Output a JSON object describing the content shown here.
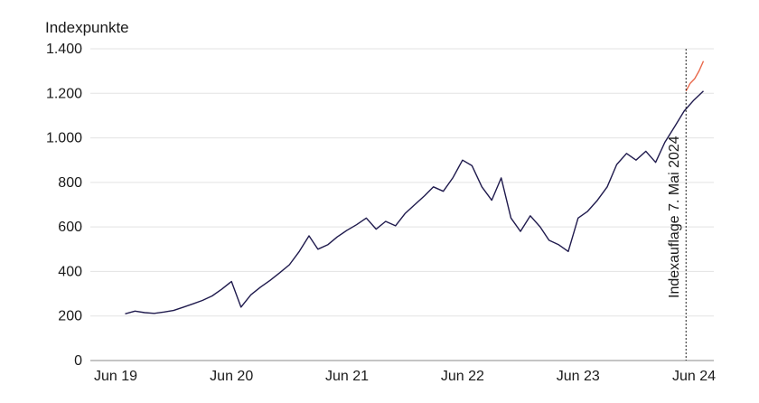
{
  "chart_data": {
    "type": "line",
    "ylabel": "Indexpunkte",
    "ylim": [
      0,
      1400
    ],
    "y_ticks": [
      0,
      200,
      400,
      600,
      800,
      1000,
      1200,
      1400
    ],
    "y_tick_labels": [
      "0",
      "200",
      "400",
      "600",
      "800",
      "1.000",
      "1.200",
      "1.400"
    ],
    "x_tick_labels": [
      "Jun 19",
      "Jun 20",
      "Jun 21",
      "Jun 22",
      "Jun 23",
      "Jun 24"
    ],
    "x_ticks": [
      "2019-06",
      "2020-06",
      "2021-06",
      "2022-06",
      "2023-06",
      "2024-06"
    ],
    "xlim": [
      "2019-06",
      "2024-07"
    ],
    "grid": true,
    "annotation": {
      "label": "Indexauflage  7. Mai 2024",
      "date": "2024-05-07",
      "style": "dashed vertical line, rotated text"
    },
    "series": [
      {
        "color": "#1f1a4d",
        "points": [
          [
            "2019-07",
            210
          ],
          [
            "2019-08",
            222
          ],
          [
            "2019-09",
            215
          ],
          [
            "2019-10",
            212
          ],
          [
            "2019-11",
            218
          ],
          [
            "2019-12",
            225
          ],
          [
            "2020-01",
            240
          ],
          [
            "2020-02",
            255
          ],
          [
            "2020-03",
            270
          ],
          [
            "2020-04",
            290
          ],
          [
            "2020-05",
            320
          ],
          [
            "2020-06",
            355
          ],
          [
            "2020-07",
            240
          ],
          [
            "2020-08",
            295
          ],
          [
            "2020-09",
            330
          ],
          [
            "2020-10",
            360
          ],
          [
            "2020-11",
            395
          ],
          [
            "2020-12",
            430
          ],
          [
            "2021-01",
            490
          ],
          [
            "2021-02",
            560
          ],
          [
            "2021-03",
            500
          ],
          [
            "2021-04",
            520
          ],
          [
            "2021-05",
            555
          ],
          [
            "2021-06",
            585
          ],
          [
            "2021-07",
            610
          ],
          [
            "2021-08",
            640
          ],
          [
            "2021-09",
            590
          ],
          [
            "2021-10",
            625
          ],
          [
            "2021-11",
            605
          ],
          [
            "2021-12",
            660
          ],
          [
            "2022-01",
            700
          ],
          [
            "2022-02",
            740
          ],
          [
            "2022-03",
            780
          ],
          [
            "2022-04",
            760
          ],
          [
            "2022-05",
            820
          ],
          [
            "2022-06",
            900
          ],
          [
            "2022-07",
            875
          ],
          [
            "2022-08",
            780
          ],
          [
            "2022-09",
            720
          ],
          [
            "2022-10",
            820
          ],
          [
            "2022-11",
            640
          ],
          [
            "2022-12",
            580
          ],
          [
            "2023-01",
            650
          ],
          [
            "2023-02",
            600
          ],
          [
            "2023-03",
            540
          ],
          [
            "2023-04",
            520
          ],
          [
            "2023-05",
            490
          ],
          [
            "2023-06",
            640
          ],
          [
            "2023-07",
            670
          ],
          [
            "2023-08",
            720
          ],
          [
            "2023-09",
            780
          ],
          [
            "2023-10",
            880
          ],
          [
            "2023-11",
            930
          ],
          [
            "2023-12",
            900
          ],
          [
            "2024-01",
            940
          ],
          [
            "2024-02",
            890
          ],
          [
            "2024-03",
            980
          ],
          [
            "2024-04",
            1050
          ],
          [
            "2024-05",
            1120
          ],
          [
            "2024-06",
            1170
          ],
          [
            "2024-07",
            1210
          ]
        ]
      },
      {
        "color": "#e8674a",
        "points": [
          [
            "2024-05-07",
            1210
          ],
          [
            "2024-05-20",
            1245
          ],
          [
            "2024-06-03",
            1265
          ],
          [
            "2024-06-17",
            1300
          ],
          [
            "2024-07-01",
            1345
          ]
        ]
      }
    ]
  }
}
